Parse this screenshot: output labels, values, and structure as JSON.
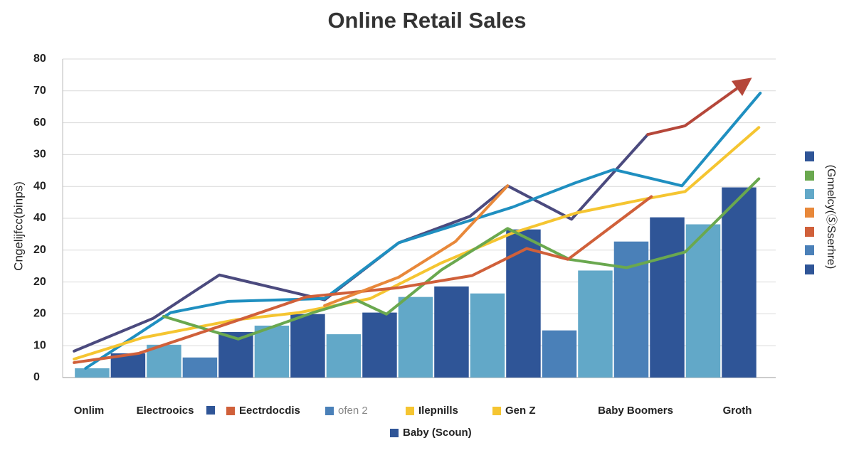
{
  "chart_data": {
    "type": "combo",
    "title": "Online Retail Sales",
    "y_label": "Cngelijfcc(binps)",
    "y2_label": "(Gnnelcy(ⓈSserhre)",
    "xlim": [
      -0.32,
      19.52
    ],
    "ylim": [
      0,
      100
    ],
    "yticks": [
      0,
      10,
      20,
      {
        "value": 30,
        "label": "20"
      },
      {
        "value": 40,
        "label": "20"
      },
      {
        "value": 50,
        "label": "40"
      },
      {
        "value": 60,
        "label": "40"
      },
      {
        "value": 70,
        "label": "30"
      },
      {
        "value": 80,
        "label": "60"
      },
      {
        "value": 90,
        "label": "70"
      },
      {
        "value": 100,
        "label": "80"
      }
    ],
    "grid": true,
    "bars": {
      "x": [
        0.5,
        1.5,
        2.5,
        3.5,
        4.5,
        5.5,
        6.5,
        7.5,
        8.5,
        9.5,
        10.5,
        11.5,
        12.5,
        13.5,
        14.5,
        15.5,
        16.5,
        17.5,
        18.5
      ],
      "values": [
        2.9,
        7.6,
        10.3,
        6.3,
        14.3,
        16.3,
        19.9,
        13.6,
        20.4,
        25.3,
        28.6,
        26.4,
        46.5,
        14.8,
        33.6,
        42.7,
        50.3,
        48.1,
        59.7
      ],
      "colors": [
        "#62a8c8",
        "#2f5597",
        "#62a8c8",
        "#4a80b8",
        "#2f5597",
        "#62a8c8",
        "#2f5597",
        "#62a8c8",
        "#2f5597",
        "#62a8c8",
        "#2f5597",
        "#62a8c8",
        "#2f5597",
        "#4a80b8",
        "#62a8c8",
        "#4a80b8",
        "#2f5597",
        "#62a8c8",
        "#2f5597"
      ]
    },
    "lines": [
      {
        "color": "#4b4a7e",
        "x": [
          0,
          2.2,
          4.04,
          6.97,
          9.03,
          11.01,
          12.06,
          13.84,
          15.96
        ],
        "values": [
          8.3,
          18.6,
          32.2,
          24.4,
          42.3,
          50.6,
          60.2,
          49.7,
          76.3
        ]
      },
      {
        "color": "#b5473a",
        "x": [
          15.96,
          16.99,
          18.73
        ],
        "values": [
          76.3,
          79.0,
          93.1
        ]
      },
      {
        "color": "#1f8fc0",
        "x": [
          0.32,
          2.69,
          4.28,
          6.97,
          9.03,
          12.2,
          13.94,
          15.01,
          16.91,
          19.09
        ],
        "values": [
          2.9,
          20.4,
          23.9,
          24.8,
          42.3,
          53.5,
          61.1,
          65.3,
          60.2,
          89.3
        ]
      },
      {
        "color": "#f5c531",
        "x": [
          0,
          1.9,
          4.48,
          6.26,
          8.24,
          10.22,
          12.2,
          13.98,
          15.96,
          17.0,
          19.05
        ],
        "values": [
          5.8,
          12.5,
          18.1,
          20.4,
          24.8,
          36.0,
          45.4,
          51.7,
          56.2,
          58.4,
          78.5
        ]
      },
      {
        "color": "#6aa84f",
        "x": [
          2.49,
          4.57,
          6.65,
          7.84,
          8.69,
          10.22,
          12.06,
          13.78,
          15.37,
          17.0,
          19.05
        ],
        "values": [
          19.2,
          12.1,
          20.4,
          24.4,
          19.9,
          33.8,
          46.8,
          37.1,
          34.5,
          39.4,
          62.4
        ]
      },
      {
        "color": "#d0603a",
        "x": [
          0,
          1.8,
          4.48,
          6.46,
          9.03,
          11.07,
          12.59,
          13.74,
          16.06
        ],
        "values": [
          4.7,
          7.6,
          17.7,
          25.3,
          28.2,
          32.0,
          40.5,
          37.1,
          56.8
        ]
      },
      {
        "color": "#e8883a",
        "x": [
          6.97,
          9.03,
          10.61,
          12.06
        ],
        "values": [
          22.6,
          31.5,
          42.7,
          60.2
        ]
      }
    ],
    "bottom_labels": [
      "Onlim",
      "Electrooics",
      "Baby Boomers",
      "Groth"
    ],
    "legend": [
      {
        "name": "Eectrdocdis",
        "color": "#d0603a"
      },
      {
        "name": "ofen 2",
        "color": "#4a80b8"
      },
      {
        "name": "Ilepnills",
        "color": "#f5c531"
      },
      {
        "name": "Gen Z",
        "color": "#f5c531"
      },
      {
        "name": "Baby (Scoun)",
        "color": "#2f5597"
      }
    ]
  }
}
